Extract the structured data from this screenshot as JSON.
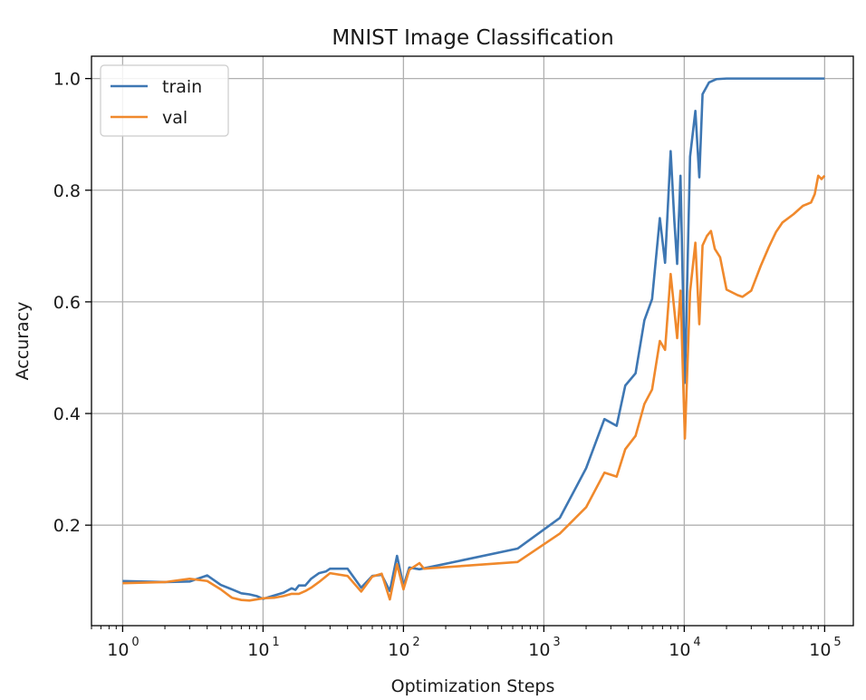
{
  "chart_data": {
    "type": "line",
    "title": "MNIST Image Classification",
    "xlabel": "Optimization Steps",
    "ylabel": "Accuracy",
    "xscale": "log",
    "xlim": [
      0.6,
      160000
    ],
    "ylim": [
      0.02,
      1.04
    ],
    "xticks": [
      {
        "base": "10",
        "exp": "0",
        "value": 1
      },
      {
        "base": "10",
        "exp": "1",
        "value": 10
      },
      {
        "base": "10",
        "exp": "2",
        "value": 100
      },
      {
        "base": "10",
        "exp": "3",
        "value": 1000
      },
      {
        "base": "10",
        "exp": "4",
        "value": 10000
      },
      {
        "base": "10",
        "exp": "5",
        "value": 100000
      }
    ],
    "yticks": [
      {
        "label": "0.2",
        "value": 0.2
      },
      {
        "label": "0.4",
        "value": 0.4
      },
      {
        "label": "0.6",
        "value": 0.6
      },
      {
        "label": "0.8",
        "value": 0.8
      },
      {
        "label": "1.0",
        "value": 1.0
      }
    ],
    "grid": true,
    "legend": "upper-left",
    "series": [
      {
        "name": "train",
        "color": "#3e77b3",
        "points": [
          [
            1,
            0.1
          ],
          [
            2,
            0.098
          ],
          [
            3,
            0.099
          ],
          [
            4,
            0.11
          ],
          [
            5,
            0.093
          ],
          [
            6,
            0.085
          ],
          [
            7,
            0.078
          ],
          [
            8,
            0.076
          ],
          [
            9,
            0.073
          ],
          [
            10,
            0.068
          ],
          [
            12,
            0.074
          ],
          [
            14,
            0.079
          ],
          [
            16,
            0.087
          ],
          [
            17,
            0.084
          ],
          [
            18,
            0.092
          ],
          [
            20,
            0.092
          ],
          [
            22,
            0.104
          ],
          [
            25,
            0.114
          ],
          [
            28,
            0.117
          ],
          [
            30,
            0.122
          ],
          [
            40,
            0.122
          ],
          [
            50,
            0.088
          ],
          [
            60,
            0.109
          ],
          [
            70,
            0.111
          ],
          [
            80,
            0.082
          ],
          [
            90,
            0.145
          ],
          [
            100,
            0.091
          ],
          [
            110,
            0.124
          ],
          [
            130,
            0.121
          ],
          [
            650,
            0.158
          ],
          [
            1300,
            0.213
          ],
          [
            2000,
            0.302
          ],
          [
            2700,
            0.39
          ],
          [
            3300,
            0.378
          ],
          [
            3800,
            0.45
          ],
          [
            4500,
            0.472
          ],
          [
            5200,
            0.567
          ],
          [
            5900,
            0.605
          ],
          [
            6700,
            0.75
          ],
          [
            7300,
            0.67
          ],
          [
            8000,
            0.87
          ],
          [
            8500,
            0.745
          ],
          [
            8900,
            0.668
          ],
          [
            9400,
            0.826
          ],
          [
            10100,
            0.455
          ],
          [
            11000,
            0.86
          ],
          [
            12000,
            0.942
          ],
          [
            12800,
            0.823
          ],
          [
            13500,
            0.972
          ],
          [
            15000,
            0.993
          ],
          [
            17000,
            0.999
          ],
          [
            20000,
            1.0
          ],
          [
            100000,
            1.0
          ]
        ]
      },
      {
        "name": "val",
        "color": "#f0892c",
        "points": [
          [
            1,
            0.096
          ],
          [
            2,
            0.098
          ],
          [
            3,
            0.104
          ],
          [
            4,
            0.1
          ],
          [
            5,
            0.085
          ],
          [
            6,
            0.07
          ],
          [
            7,
            0.066
          ],
          [
            8,
            0.065
          ],
          [
            9,
            0.067
          ],
          [
            10,
            0.069
          ],
          [
            12,
            0.07
          ],
          [
            14,
            0.073
          ],
          [
            16,
            0.077
          ],
          [
            18,
            0.077
          ],
          [
            20,
            0.082
          ],
          [
            22,
            0.088
          ],
          [
            25,
            0.098
          ],
          [
            30,
            0.114
          ],
          [
            40,
            0.109
          ],
          [
            50,
            0.081
          ],
          [
            60,
            0.108
          ],
          [
            70,
            0.113
          ],
          [
            80,
            0.067
          ],
          [
            90,
            0.13
          ],
          [
            100,
            0.085
          ],
          [
            110,
            0.12
          ],
          [
            130,
            0.132
          ],
          [
            140,
            0.122
          ],
          [
            650,
            0.134
          ],
          [
            1300,
            0.185
          ],
          [
            2000,
            0.232
          ],
          [
            2700,
            0.294
          ],
          [
            3300,
            0.287
          ],
          [
            3800,
            0.336
          ],
          [
            4500,
            0.36
          ],
          [
            5200,
            0.417
          ],
          [
            5900,
            0.443
          ],
          [
            6700,
            0.53
          ],
          [
            7300,
            0.514
          ],
          [
            8000,
            0.65
          ],
          [
            8500,
            0.585
          ],
          [
            8900,
            0.535
          ],
          [
            9400,
            0.62
          ],
          [
            10100,
            0.355
          ],
          [
            11000,
            0.618
          ],
          [
            12000,
            0.706
          ],
          [
            12800,
            0.56
          ],
          [
            13500,
            0.701
          ],
          [
            14500,
            0.718
          ],
          [
            15500,
            0.727
          ],
          [
            16500,
            0.695
          ],
          [
            18000,
            0.68
          ],
          [
            20000,
            0.622
          ],
          [
            24000,
            0.612
          ],
          [
            26000,
            0.609
          ],
          [
            30000,
            0.62
          ],
          [
            35000,
            0.664
          ],
          [
            40000,
            0.698
          ],
          [
            45000,
            0.725
          ],
          [
            50000,
            0.742
          ],
          [
            60000,
            0.757
          ],
          [
            70000,
            0.772
          ],
          [
            80000,
            0.778
          ],
          [
            85000,
            0.793
          ],
          [
            90000,
            0.826
          ],
          [
            95000,
            0.82
          ],
          [
            100000,
            0.826
          ]
        ]
      }
    ]
  }
}
